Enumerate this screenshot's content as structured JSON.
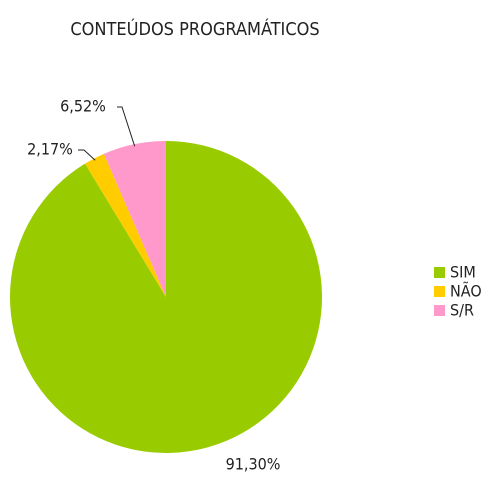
{
  "chart_data": {
    "type": "pie",
    "title": "CONTEÚDOS PROGRAMÁTICOS",
    "categories": [
      "SIM",
      "NÃO",
      "S/R"
    ],
    "values": [
      91.3,
      2.17,
      6.52
    ],
    "value_labels": [
      "91,30%",
      "2,17%",
      "6,52%"
    ],
    "colors": [
      "#99cc00",
      "#ffcc00",
      "#ff99cc"
    ],
    "legend": "right"
  }
}
